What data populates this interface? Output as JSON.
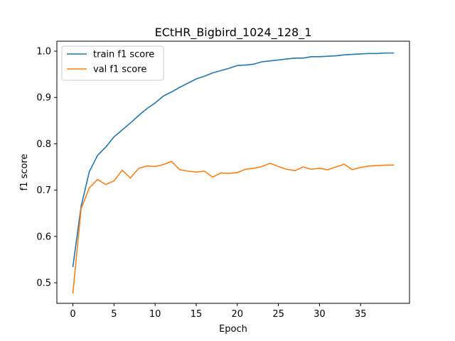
{
  "chart_data": {
    "type": "line",
    "title": "ECtHR_Bigbird_1024_128_1",
    "xlabel": "Epoch",
    "ylabel": "f1 score",
    "xlim": [
      -1.95,
      40.95
    ],
    "ylim": [
      0.4555,
      1.0215
    ],
    "xticks": [
      0,
      5,
      10,
      15,
      20,
      25,
      30,
      35
    ],
    "yticks": [
      0.5,
      0.6,
      0.7,
      0.8,
      0.9,
      1.0
    ],
    "ytick_labels": [
      "0.5",
      "0.6",
      "0.7",
      "0.8",
      "0.9",
      "1.0"
    ],
    "grid": false,
    "legend_position": "upper-left",
    "x": [
      0,
      1,
      2,
      3,
      4,
      5,
      6,
      7,
      8,
      9,
      10,
      11,
      12,
      13,
      14,
      15,
      16,
      17,
      18,
      19,
      20,
      21,
      22,
      23,
      24,
      25,
      26,
      27,
      28,
      29,
      30,
      31,
      32,
      33,
      34,
      35,
      36,
      37,
      38,
      39
    ],
    "series": [
      {
        "name": "train f1 score",
        "color": "#1f77b4",
        "values": [
          0.535,
          0.665,
          0.74,
          0.775,
          0.793,
          0.815,
          0.83,
          0.845,
          0.861,
          0.876,
          0.888,
          0.903,
          0.912,
          0.922,
          0.931,
          0.94,
          0.946,
          0.953,
          0.958,
          0.963,
          0.969,
          0.97,
          0.972,
          0.977,
          0.979,
          0.981,
          0.983,
          0.985,
          0.985,
          0.988,
          0.988,
          0.989,
          0.99,
          0.992,
          0.993,
          0.994,
          0.995,
          0.995,
          0.996,
          0.996
        ]
      },
      {
        "name": "val f1 score",
        "color": "#ff7f0e",
        "values": [
          0.478,
          0.66,
          0.705,
          0.723,
          0.712,
          0.72,
          0.743,
          0.726,
          0.747,
          0.752,
          0.751,
          0.755,
          0.762,
          0.744,
          0.741,
          0.739,
          0.741,
          0.728,
          0.737,
          0.736,
          0.738,
          0.745,
          0.747,
          0.751,
          0.758,
          0.751,
          0.745,
          0.742,
          0.75,
          0.745,
          0.747,
          0.744,
          0.75,
          0.756,
          0.744,
          0.749,
          0.752,
          0.753,
          0.754,
          0.754
        ]
      }
    ]
  }
}
